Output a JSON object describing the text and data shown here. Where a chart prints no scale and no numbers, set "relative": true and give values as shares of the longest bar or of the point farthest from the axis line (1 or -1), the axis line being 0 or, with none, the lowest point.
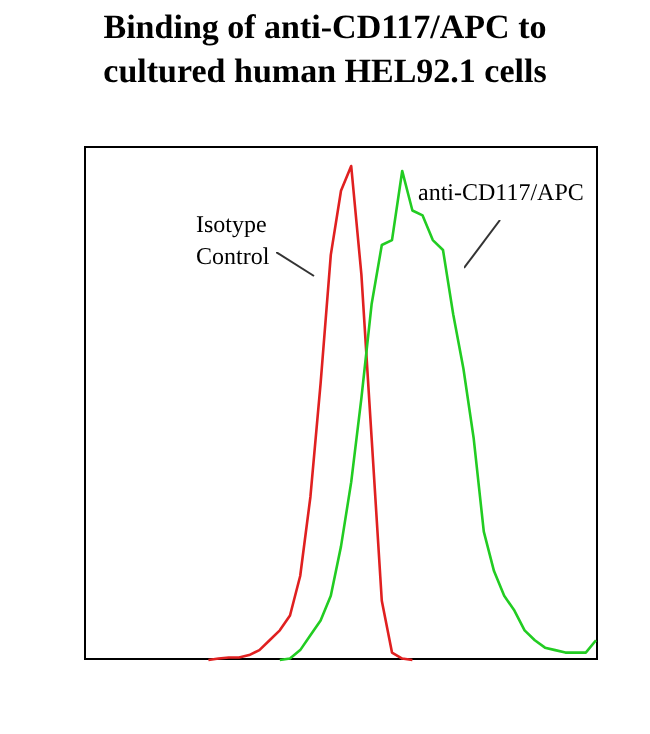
{
  "chart_data": {
    "type": "line",
    "title": "Binding of anti-CD117/APC to cultured human HEL92.1 cells",
    "relative": true,
    "legend": false,
    "grid": false,
    "marker": "none",
    "line_style": "solid",
    "categories": [
      null,
      null,
      null,
      null,
      null,
      null,
      null,
      null,
      null,
      null,
      null,
      null,
      null,
      null,
      null,
      null,
      null,
      null,
      null,
      null,
      null,
      null,
      null,
      null,
      null,
      null,
      null,
      null,
      null,
      null,
      null,
      null,
      null,
      null,
      null,
      null,
      null,
      null,
      null,
      null,
      null,
      null,
      null,
      null,
      null,
      null,
      null,
      null,
      null,
      null,
      null
    ],
    "series": [
      {
        "name": "Isotype Control",
        "color": "#e02020",
        "values": [
          null,
          null,
          null,
          null,
          null,
          null,
          null,
          null,
          null,
          null,
          null,
          null,
          0,
          0.003,
          0.005,
          0.005,
          0.01,
          0.02,
          0.04,
          0.06,
          0.09,
          0.17,
          0.33,
          0.56,
          0.82,
          0.95,
          1,
          0.78,
          0.45,
          0.12,
          0.015,
          0.003,
          0,
          null,
          null,
          null,
          null,
          null,
          null,
          null,
          null,
          null,
          null,
          null,
          null,
          null,
          null,
          null,
          null,
          null,
          null
        ]
      },
      {
        "name": "anti-CD117/APC",
        "color": "#22cc22",
        "values": [
          null,
          null,
          null,
          null,
          null,
          null,
          null,
          null,
          null,
          null,
          null,
          null,
          null,
          null,
          null,
          null,
          null,
          null,
          null,
          0,
          0.003,
          0.02,
          0.05,
          0.08,
          0.13,
          0.23,
          0.36,
          0.53,
          0.72,
          0.84,
          0.85,
          0.99,
          0.91,
          0.9,
          0.85,
          0.83,
          0.7,
          0.59,
          0.45,
          0.26,
          0.18,
          0.13,
          0.1,
          0.06,
          0.04,
          0.025,
          0.02,
          0.015,
          0.015,
          0.015,
          0.04
        ]
      }
    ]
  }
}
